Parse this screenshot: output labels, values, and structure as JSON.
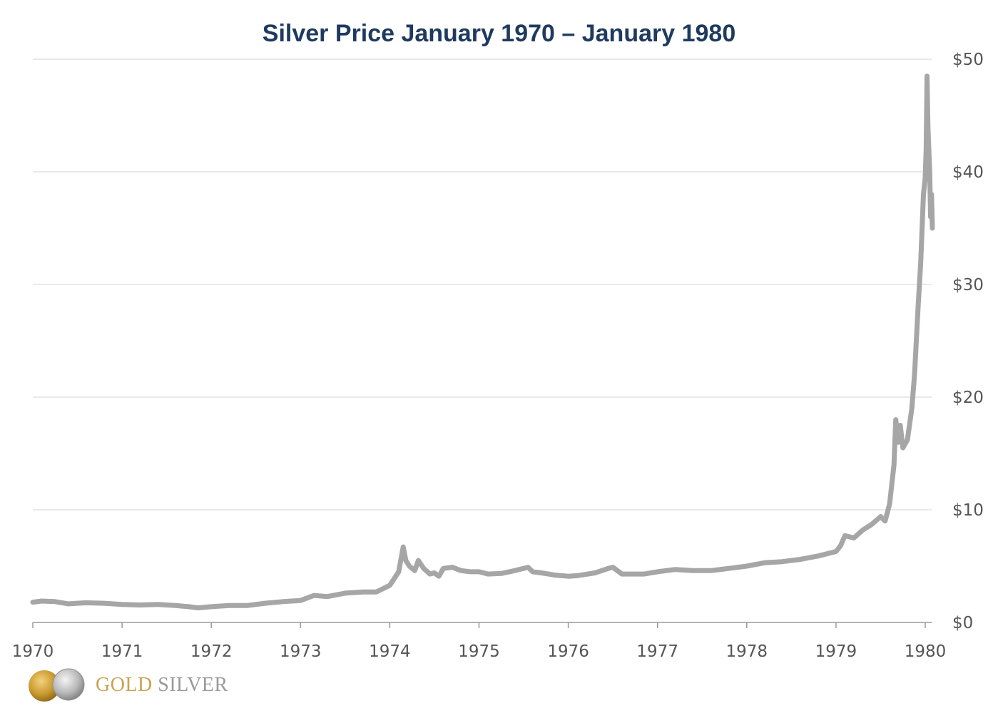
{
  "chart_data": {
    "type": "line",
    "title": "Silver Price January 1970 – January 1980",
    "xlabel": "",
    "ylabel": "",
    "x_ticks": [
      "1970",
      "1971",
      "1972",
      "1973",
      "1974",
      "1975",
      "1976",
      "1977",
      "1978",
      "1979",
      "1980"
    ],
    "y_ticks": [
      "$0",
      "$10",
      "$20",
      "$30",
      "$40",
      "$50"
    ],
    "xlim": [
      1970,
      1980.1
    ],
    "ylim": [
      0,
      50
    ],
    "grid": true,
    "y_axis_side": "right",
    "series": [
      {
        "color": "#a6a6a6",
        "x": [
          1970.0,
          1970.1,
          1970.25,
          1970.4,
          1970.6,
          1970.8,
          1971.0,
          1971.2,
          1971.4,
          1971.6,
          1971.75,
          1971.85,
          1972.0,
          1972.2,
          1972.4,
          1972.6,
          1972.8,
          1973.0,
          1973.15,
          1973.3,
          1973.5,
          1973.7,
          1973.85,
          1974.0,
          1974.1,
          1974.15,
          1974.18,
          1974.22,
          1974.28,
          1974.32,
          1974.38,
          1974.45,
          1974.5,
          1974.55,
          1974.6,
          1974.7,
          1974.8,
          1974.9,
          1975.0,
          1975.1,
          1975.25,
          1975.4,
          1975.55,
          1975.6,
          1975.7,
          1975.85,
          1976.0,
          1976.1,
          1976.3,
          1976.45,
          1976.5,
          1976.6,
          1976.7,
          1976.85,
          1977.0,
          1977.2,
          1977.4,
          1977.6,
          1977.8,
          1978.0,
          1978.2,
          1978.4,
          1978.6,
          1978.8,
          1979.0,
          1979.05,
          1979.1,
          1979.2,
          1979.3,
          1979.4,
          1979.5,
          1979.55,
          1979.6,
          1979.65,
          1979.67,
          1979.7,
          1979.72,
          1979.75,
          1979.8,
          1979.85,
          1979.88,
          1979.9,
          1979.92,
          1979.95,
          1979.98,
          1980.0,
          1980.01,
          1980.02,
          1980.03,
          1980.04,
          1980.05,
          1980.06,
          1980.07,
          1980.08
        ],
        "y": [
          1.8,
          1.9,
          1.85,
          1.65,
          1.75,
          1.7,
          1.6,
          1.55,
          1.6,
          1.5,
          1.4,
          1.3,
          1.4,
          1.5,
          1.5,
          1.7,
          1.85,
          1.95,
          2.4,
          2.3,
          2.6,
          2.7,
          2.7,
          3.3,
          4.5,
          6.7,
          5.5,
          5.0,
          4.6,
          5.5,
          4.8,
          4.3,
          4.4,
          4.1,
          4.8,
          4.9,
          4.6,
          4.5,
          4.5,
          4.3,
          4.35,
          4.6,
          4.9,
          4.5,
          4.4,
          4.2,
          4.1,
          4.15,
          4.4,
          4.8,
          4.9,
          4.3,
          4.3,
          4.3,
          4.5,
          4.7,
          4.6,
          4.6,
          4.8,
          5.0,
          5.3,
          5.4,
          5.6,
          5.9,
          6.3,
          6.8,
          7.7,
          7.5,
          8.2,
          8.7,
          9.4,
          9.0,
          10.5,
          14.0,
          18.0,
          16.0,
          17.5,
          15.5,
          16.2,
          19.0,
          22.0,
          25.0,
          28.0,
          32.0,
          38.0,
          39.5,
          42.0,
          48.5,
          44.0,
          42.0,
          40.0,
          36.0,
          38.0,
          35.0
        ]
      }
    ]
  },
  "logo": {
    "text_gold": "GOLD",
    "text_silver": "SILVER"
  }
}
